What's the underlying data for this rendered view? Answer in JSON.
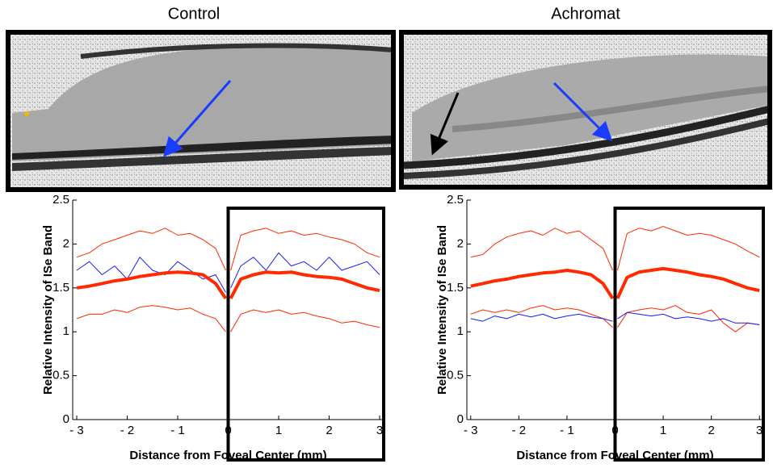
{
  "chart_data": [
    {
      "type": "line",
      "title": "Control",
      "xlabel": "Distance from Foveal Center (mm)",
      "ylabel": "Relative Intensity of ISe Band",
      "x": [
        -3,
        -2.75,
        -2.5,
        -2.25,
        -2,
        -1.75,
        -1.5,
        -1.25,
        -1,
        -0.75,
        -0.5,
        -0.25,
        -0.05,
        0,
        0.05,
        0.25,
        0.5,
        0.75,
        1,
        1.25,
        1.5,
        1.75,
        2,
        2.25,
        2.5,
        2.75,
        3
      ],
      "series": [
        {
          "color": "#ff2a00",
          "linewidth": 1,
          "values": [
            1.85,
            1.9,
            2.0,
            2.05,
            2.1,
            2.15,
            2.12,
            2.18,
            2.1,
            2.12,
            2.05,
            1.95,
            1.7,
            null,
            1.7,
            2.1,
            2.15,
            2.18,
            2.12,
            2.15,
            2.1,
            2.12,
            2.08,
            2.05,
            2.0,
            1.9,
            1.85
          ]
        },
        {
          "color": "#ff2a00",
          "linewidth": 1,
          "values": [
            1.15,
            1.2,
            1.2,
            1.25,
            1.22,
            1.28,
            1.3,
            1.28,
            1.25,
            1.27,
            1.2,
            1.15,
            1.0,
            null,
            1.0,
            1.2,
            1.25,
            1.22,
            1.25,
            1.2,
            1.22,
            1.18,
            1.15,
            1.1,
            1.12,
            1.08,
            1.05
          ]
        },
        {
          "color": "#1a1aff",
          "linewidth": 1,
          "values": [
            1.7,
            1.8,
            1.65,
            1.75,
            1.6,
            1.85,
            1.7,
            1.65,
            1.8,
            1.7,
            1.6,
            1.65,
            1.45,
            null,
            1.5,
            1.75,
            1.85,
            1.7,
            1.9,
            1.75,
            1.8,
            1.7,
            1.85,
            1.7,
            1.75,
            1.8,
            1.65
          ]
        },
        {
          "color": "#ff2a00",
          "linewidth": 4,
          "values": [
            1.5,
            1.52,
            1.55,
            1.58,
            1.6,
            1.63,
            1.65,
            1.67,
            1.68,
            1.67,
            1.65,
            1.55,
            1.38,
            null,
            1.38,
            1.6,
            1.65,
            1.68,
            1.67,
            1.68,
            1.65,
            1.63,
            1.62,
            1.6,
            1.55,
            1.5,
            1.47
          ]
        }
      ],
      "xlim": [
        -3.08,
        3.08
      ],
      "ylim": [
        0,
        2.5
      ],
      "xticks": [
        {
          "value": -3,
          "label": "- 3"
        },
        {
          "value": -2,
          "label": "- 2"
        },
        {
          "value": -1,
          "label": "- 1"
        },
        0,
        1,
        2,
        3
      ],
      "yticks": [
        0,
        0.5,
        1,
        1.5,
        2,
        2.5
      ],
      "grid": false
    },
    {
      "type": "line",
      "title": "Achromat",
      "xlabel": "Distance from Foveal Center (mm)",
      "ylabel": "Relative Intensity of ISe Band",
      "x": [
        -3,
        -2.75,
        -2.5,
        -2.25,
        -2,
        -1.75,
        -1.5,
        -1.25,
        -1,
        -0.75,
        -0.5,
        -0.25,
        -0.05,
        0,
        0.05,
        0.25,
        0.5,
        0.75,
        1,
        1.25,
        1.5,
        1.75,
        2,
        2.25,
        2.5,
        2.75,
        3
      ],
      "series": [
        {
          "color": "#ff2a00",
          "linewidth": 1,
          "values": [
            1.85,
            1.88,
            2.0,
            2.08,
            2.12,
            2.15,
            2.1,
            2.18,
            2.12,
            2.15,
            2.05,
            1.95,
            1.7,
            null,
            1.7,
            2.12,
            2.18,
            2.15,
            2.2,
            2.15,
            2.1,
            2.12,
            2.1,
            2.05,
            2.0,
            1.92,
            1.85
          ]
        },
        {
          "color": "#ff2a00",
          "linewidth": 1,
          "values": [
            1.2,
            1.25,
            1.22,
            1.25,
            1.22,
            1.27,
            1.3,
            1.25,
            1.27,
            1.25,
            1.2,
            1.15,
            1.05,
            null,
            1.05,
            1.22,
            1.25,
            1.27,
            1.25,
            1.3,
            1.22,
            1.2,
            1.25,
            1.1,
            1.0,
            1.1,
            1.08
          ]
        },
        {
          "color": "#1a1aff",
          "linewidth": 1,
          "values": [
            1.15,
            1.12,
            1.18,
            1.15,
            1.2,
            1.17,
            1.2,
            1.15,
            1.18,
            1.2,
            1.17,
            1.15,
            1.12,
            null,
            1.15,
            1.22,
            1.2,
            1.18,
            1.2,
            1.15,
            1.17,
            1.15,
            1.12,
            1.15,
            1.1,
            1.1,
            1.08
          ]
        },
        {
          "color": "#ff2a00",
          "linewidth": 4,
          "values": [
            1.52,
            1.55,
            1.58,
            1.6,
            1.63,
            1.65,
            1.67,
            1.68,
            1.7,
            1.68,
            1.65,
            1.55,
            1.38,
            null,
            1.38,
            1.62,
            1.68,
            1.7,
            1.72,
            1.7,
            1.68,
            1.65,
            1.63,
            1.6,
            1.55,
            1.5,
            1.47
          ]
        }
      ],
      "xlim": [
        -3.08,
        3.08
      ],
      "ylim": [
        0,
        2.5
      ],
      "xticks": [
        {
          "value": -3,
          "label": "- 3"
        },
        {
          "value": -2,
          "label": "- 2"
        },
        {
          "value": -1,
          "label": "- 1"
        },
        0,
        1,
        2,
        3
      ],
      "yticks": [
        0,
        0.5,
        1,
        1.5,
        2,
        2.5
      ],
      "grid": false
    }
  ]
}
